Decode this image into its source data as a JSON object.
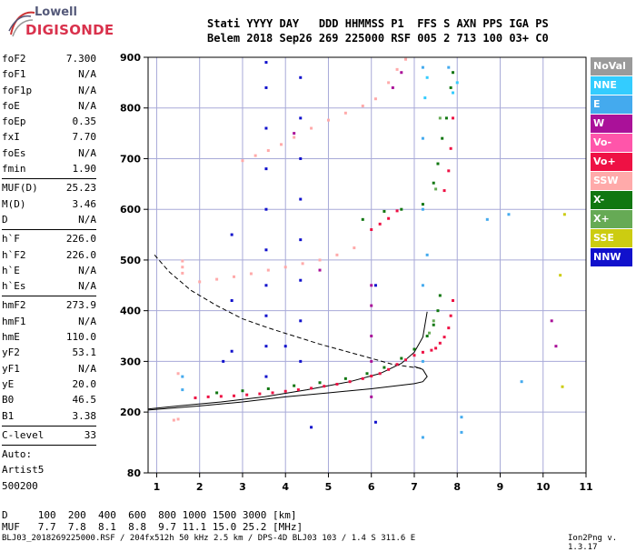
{
  "logo": {
    "line1": "Lowell",
    "line2": "DIGISONDE"
  },
  "header": {
    "row1": "Stati YYYY DAY   DDD HHMMSS P1  FFS S AXN PPS IGA PS",
    "row2": "Belem 2018 Sep26 269 225000 RSF 005 2 713 100 03+ C0"
  },
  "params_groups": [
    [
      {
        "name": "foF2",
        "value": "7.300"
      },
      {
        "name": "foF1",
        "value": "N/A"
      },
      {
        "name": "foF1p",
        "value": "N/A"
      },
      {
        "name": "foE",
        "value": "N/A"
      },
      {
        "name": "foEp",
        "value": "0.35"
      },
      {
        "name": "fxI",
        "value": "7.70"
      },
      {
        "name": "foEs",
        "value": "N/A"
      },
      {
        "name": "fmin",
        "value": "1.90"
      }
    ],
    [
      {
        "name": "MUF(D)",
        "value": "25.23"
      },
      {
        "name": "M(D)",
        "value": "3.46"
      },
      {
        "name": "D",
        "value": "N/A"
      }
    ],
    [
      {
        "name": "h`F",
        "value": "226.0"
      },
      {
        "name": "h`F2",
        "value": "226.0"
      },
      {
        "name": "h`E",
        "value": "N/A"
      },
      {
        "name": "h`Es",
        "value": "N/A"
      }
    ],
    [
      {
        "name": "hmF2",
        "value": "273.9"
      },
      {
        "name": "hmF1",
        "value": "N/A"
      },
      {
        "name": "hmE",
        "value": "110.0"
      },
      {
        "name": "yF2",
        "value": "53.1"
      },
      {
        "name": "yF1",
        "value": "N/A"
      },
      {
        "name": "yE",
        "value": "20.0"
      },
      {
        "name": "B0",
        "value": "46.5"
      },
      {
        "name": "B1",
        "value": "3.38"
      }
    ],
    [
      {
        "name": "C-level",
        "value": "33"
      }
    ]
  ],
  "autoscale_lines": [
    "Auto:",
    "Artist5",
    "500200"
  ],
  "legend": [
    {
      "label": "NoVal",
      "color": "#9a9a9a"
    },
    {
      "label": "NNE",
      "color": "#33ccff"
    },
    {
      "label": "E",
      "color": "#44aaee"
    },
    {
      "label": "W",
      "color": "#aa1199"
    },
    {
      "label": "Vo-",
      "color": "#ff55aa"
    },
    {
      "label": "Vo+",
      "color": "#ee1144"
    },
    {
      "label": "SSW",
      "color": "#ffaaaa"
    },
    {
      "label": "X-",
      "color": "#117711"
    },
    {
      "label": "X+",
      "color": "#66aa55"
    },
    {
      "label": "SSE",
      "color": "#cccc11"
    },
    {
      "label": "NNW",
      "color": "#1111cc"
    }
  ],
  "footer": {
    "line1": "D     100  200  400  600  800 1000 1500 3000 [km]",
    "line2": "MUF   7.7  7.8  8.1  8.8  9.7 11.1 15.0 25.2 [MHz]"
  },
  "file_info": "BLJ03_2018269225000.RSF / 204fx512h 50 kHz 2.5 km / DPS-4D BLJ03 103 / 1.4 S 311.6 E",
  "version": "Ion2Png v. 1.3.17",
  "chart_data": {
    "type": "scatter",
    "title": "",
    "xlabel": "",
    "ylabel": "",
    "x_ticks": [
      "1",
      "2",
      "3",
      "4",
      "5",
      "6",
      "7",
      "8",
      "9",
      "10",
      "11"
    ],
    "y_ticks": [
      "80",
      "200",
      "300",
      "400",
      "500",
      "600",
      "700",
      "800",
      "900"
    ],
    "xlim": [
      0.8,
      11.0
    ],
    "ylim": [
      80,
      900
    ],
    "grid": true,
    "legend_position": "right",
    "series": [
      {
        "name": "Vo+",
        "color": "#ee1144",
        "points": [
          [
            1.9,
            228
          ],
          [
            2.2,
            230
          ],
          [
            2.5,
            231
          ],
          [
            2.8,
            232
          ],
          [
            3.1,
            234
          ],
          [
            3.4,
            236
          ],
          [
            3.7,
            238
          ],
          [
            4.0,
            241
          ],
          [
            4.3,
            244
          ],
          [
            4.6,
            247
          ],
          [
            4.9,
            251
          ],
          [
            5.2,
            255
          ],
          [
            5.5,
            260
          ],
          [
            5.8,
            266
          ],
          [
            6.0,
            271
          ],
          [
            6.2,
            276
          ],
          [
            6.4,
            284
          ],
          [
            6.6,
            294
          ],
          [
            6.8,
            303
          ],
          [
            7.0,
            312
          ],
          [
            7.2,
            318
          ],
          [
            7.4,
            322
          ],
          [
            7.5,
            326
          ],
          [
            7.6,
            336
          ],
          [
            7.7,
            348
          ],
          [
            7.8,
            366
          ],
          [
            7.85,
            390
          ],
          [
            7.9,
            420
          ],
          [
            6.0,
            560
          ],
          [
            6.2,
            571
          ],
          [
            6.4,
            582
          ],
          [
            6.6,
            597
          ],
          [
            7.7,
            637
          ],
          [
            7.8,
            676
          ],
          [
            7.85,
            720
          ],
          [
            7.9,
            780
          ]
        ]
      },
      {
        "name": "X-",
        "color": "#117711",
        "points": [
          [
            2.4,
            238
          ],
          [
            3.0,
            242
          ],
          [
            3.6,
            246
          ],
          [
            4.2,
            252
          ],
          [
            4.8,
            258
          ],
          [
            5.4,
            266
          ],
          [
            5.9,
            276
          ],
          [
            6.3,
            288
          ],
          [
            6.7,
            306
          ],
          [
            7.0,
            324
          ],
          [
            7.3,
            350
          ],
          [
            7.45,
            372
          ],
          [
            7.55,
            400
          ],
          [
            7.6,
            430
          ],
          [
            5.8,
            580
          ],
          [
            6.3,
            596
          ],
          [
            6.7,
            600
          ],
          [
            7.2,
            610
          ],
          [
            7.45,
            652
          ],
          [
            7.55,
            690
          ],
          [
            7.65,
            740
          ],
          [
            7.75,
            780
          ],
          [
            7.85,
            840
          ],
          [
            7.9,
            870
          ]
        ]
      },
      {
        "name": "SSW",
        "color": "#ffaaaa",
        "points": [
          [
            2.0,
            457
          ],
          [
            2.4,
            462
          ],
          [
            2.8,
            467
          ],
          [
            3.2,
            473
          ],
          [
            3.6,
            480
          ],
          [
            4.0,
            486
          ],
          [
            4.4,
            493
          ],
          [
            4.8,
            500
          ],
          [
            5.2,
            510
          ],
          [
            5.6,
            524
          ],
          [
            3.0,
            696
          ],
          [
            3.3,
            706
          ],
          [
            3.6,
            716
          ],
          [
            3.9,
            728
          ],
          [
            4.2,
            742
          ],
          [
            4.6,
            760
          ],
          [
            5.0,
            776
          ],
          [
            5.4,
            790
          ],
          [
            5.8,
            804
          ],
          [
            6.1,
            818
          ],
          [
            6.4,
            850
          ],
          [
            6.6,
            876
          ],
          [
            6.8,
            896
          ],
          [
            1.6,
            474
          ],
          [
            1.6,
            486
          ],
          [
            1.6,
            498
          ],
          [
            1.5,
            186
          ],
          [
            1.5,
            276
          ],
          [
            1.4,
            184
          ]
        ]
      },
      {
        "name": "NNW",
        "color": "#1111cc",
        "points": [
          [
            3.55,
            270
          ],
          [
            3.55,
            330
          ],
          [
            3.55,
            390
          ],
          [
            3.55,
            450
          ],
          [
            3.55,
            520
          ],
          [
            3.55,
            600
          ],
          [
            3.55,
            680
          ],
          [
            3.55,
            760
          ],
          [
            3.55,
            840
          ],
          [
            3.55,
            890
          ],
          [
            4.35,
            300
          ],
          [
            4.35,
            380
          ],
          [
            4.35,
            460
          ],
          [
            4.35,
            540
          ],
          [
            4.35,
            620
          ],
          [
            4.35,
            700
          ],
          [
            4.35,
            780
          ],
          [
            4.35,
            860
          ],
          [
            2.75,
            320
          ],
          [
            2.75,
            420
          ],
          [
            2.75,
            550
          ],
          [
            6.1,
            180
          ],
          [
            6.1,
            450
          ],
          [
            4.0,
            330
          ],
          [
            4.6,
            170
          ],
          [
            2.55,
            300
          ]
        ]
      },
      {
        "name": "E",
        "color": "#44aaee",
        "points": [
          [
            7.2,
            150
          ],
          [
            7.2,
            300
          ],
          [
            7.2,
            450
          ],
          [
            7.2,
            600
          ],
          [
            7.2,
            740
          ],
          [
            7.2,
            880
          ],
          [
            7.3,
            510
          ],
          [
            8.1,
            160
          ],
          [
            8.1,
            190
          ],
          [
            7.8,
            880
          ],
          [
            1.6,
            244
          ],
          [
            1.6,
            270
          ],
          [
            9.5,
            260
          ],
          [
            9.2,
            590
          ],
          [
            8.7,
            580
          ]
        ]
      },
      {
        "name": "W",
        "color": "#aa1199",
        "points": [
          [
            6.0,
            230
          ],
          [
            6.0,
            300
          ],
          [
            6.0,
            350
          ],
          [
            6.0,
            410
          ],
          [
            6.0,
            450
          ],
          [
            6.7,
            870
          ],
          [
            6.5,
            840
          ],
          [
            4.2,
            750
          ],
          [
            4.8,
            480
          ],
          [
            10.2,
            380
          ],
          [
            10.3,
            330
          ]
        ]
      },
      {
        "name": "X+",
        "color": "#66aa55",
        "points": [
          [
            7.35,
            356
          ],
          [
            7.45,
            380
          ],
          [
            7.5,
            640
          ],
          [
            7.6,
            780
          ]
        ]
      },
      {
        "name": "SSE",
        "color": "#cccc11",
        "points": [
          [
            10.5,
            590
          ],
          [
            10.4,
            470
          ],
          [
            10.45,
            250
          ]
        ]
      },
      {
        "name": "NNE",
        "color": "#33ccff",
        "points": [
          [
            7.25,
            820
          ],
          [
            7.3,
            860
          ],
          [
            8.0,
            850
          ],
          [
            7.9,
            830
          ]
        ]
      }
    ],
    "profile_curve": {
      "x": [
        0.8,
        1.5,
        2.5,
        3.5,
        4.5,
        5.5,
        6.2,
        6.7,
        7.0,
        7.2,
        7.3
      ],
      "y": [
        206,
        212,
        220,
        230,
        244,
        260,
        276,
        296,
        318,
        348,
        398
      ]
    },
    "profile_curve_2": {
      "x": [
        0.8,
        2.0,
        3.0,
        4.0,
        5.0,
        6.0,
        6.6,
        7.0,
        7.2,
        7.3,
        7.2,
        7.0
      ],
      "y": [
        204,
        212,
        220,
        230,
        238,
        246,
        252,
        256,
        260,
        270,
        284,
        290
      ]
    },
    "dashed_curve": {
      "x": [
        0.95,
        1.3,
        1.8,
        2.4,
        3.0,
        3.6,
        4.2,
        4.8,
        5.4,
        6.0,
        6.5,
        7.0,
        7.2
      ],
      "y": [
        510,
        476,
        440,
        410,
        384,
        366,
        350,
        334,
        320,
        306,
        294,
        288,
        286
      ]
    }
  }
}
